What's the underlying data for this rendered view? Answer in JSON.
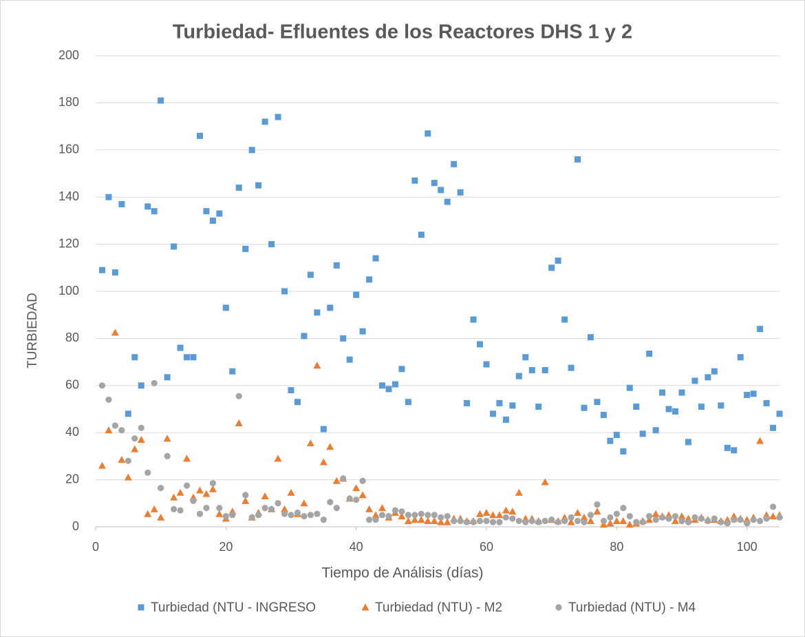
{
  "chart_data": {
    "type": "scatter",
    "title": "Turbiedad- Efluentes de los Reactores DHS 1 y 2",
    "x_label": "Tiempo de Análisis (días)",
    "y_label": "TURBIEDAD",
    "x": [
      1,
      2,
      3,
      4,
      5,
      6,
      7,
      8,
      9,
      10,
      11,
      12,
      13,
      14,
      15,
      16,
      17,
      18,
      19,
      20,
      21,
      22,
      23,
      24,
      25,
      26,
      27,
      28,
      29,
      30,
      31,
      32,
      33,
      34,
      35,
      36,
      37,
      38,
      39,
      40,
      41,
      42,
      43,
      44,
      45,
      46,
      47,
      48,
      49,
      50,
      51,
      52,
      53,
      54,
      55,
      56,
      57,
      58,
      59,
      60,
      61,
      62,
      63,
      64,
      65,
      66,
      67,
      68,
      69,
      70,
      71,
      72,
      73,
      74,
      75,
      76,
      77,
      78,
      79,
      80,
      81,
      82,
      83,
      84,
      85,
      86,
      87,
      88,
      89,
      90,
      91,
      92,
      93,
      94,
      95,
      96,
      97,
      98,
      99,
      100,
      101,
      102,
      103,
      104,
      105
    ],
    "series": [
      {
        "name": "Turbiedad (NTU - INGRESO",
        "color": "#5b9bd5",
        "marker": "square",
        "values": [
          109,
          140,
          108,
          137,
          48,
          72,
          60,
          136,
          134,
          181,
          63.5,
          119,
          76,
          72,
          72,
          166,
          134,
          130,
          133,
          93,
          66,
          144,
          118,
          160,
          145,
          172,
          120,
          174,
          100,
          58,
          53,
          81,
          107,
          91,
          41.5,
          93,
          111,
          80,
          71,
          98.5,
          83,
          105,
          114,
          60,
          58.5,
          60.5,
          67,
          53,
          147,
          124,
          167,
          146,
          143,
          138,
          154,
          142,
          52.5,
          88,
          77.5,
          69,
          48,
          52.5,
          45.5,
          51.5,
          64,
          72,
          66.5,
          51,
          66.5,
          110,
          113,
          88,
          67.5,
          156,
          50.5,
          80.5,
          53,
          47.5,
          36.5,
          39,
          32,
          59,
          51,
          39.5,
          73.5,
          41,
          57,
          50,
          49,
          57,
          36,
          62,
          51,
          63.5,
          66,
          51.5,
          33.5,
          32.5,
          72,
          56,
          56.5,
          84,
          52.5,
          42,
          48
        ]
      },
      {
        "name": "Turbiedad (NTU) - M2",
        "color": "#ed7d31",
        "marker": "triangle",
        "values": [
          26,
          41,
          82.5,
          28.5,
          21,
          33,
          37,
          5.5,
          7.5,
          4,
          37.5,
          12.5,
          14.5,
          29,
          12.5,
          15.5,
          14,
          16,
          5.5,
          3.5,
          6.5,
          44,
          11,
          4,
          6,
          13,
          7.5,
          29,
          7.5,
          14.5,
          5.5,
          10,
          35.5,
          68.5,
          27.5,
          34,
          19.5,
          20.5,
          12,
          16.5,
          13.5,
          7.5,
          5,
          8,
          4,
          6,
          4.5,
          2.5,
          3,
          3,
          2.5,
          2.5,
          2,
          2,
          3.5,
          3.5,
          2.5,
          2.5,
          5.5,
          6,
          5,
          5,
          7,
          6.5,
          14.5,
          3.5,
          3.5,
          2.5,
          19,
          3,
          2.5,
          4,
          2,
          6,
          4,
          2.5,
          6.5,
          1,
          1.5,
          2.5,
          2.5,
          1,
          1.5,
          2.5,
          3,
          5.5,
          4.5,
          5,
          2.5,
          4.5,
          3.5,
          3,
          4,
          3,
          3,
          2.5,
          3,
          4.5,
          3.5,
          3,
          4,
          36.5,
          5,
          4.5,
          5
        ]
      },
      {
        "name": "Turbiedad (NTU) - M4",
        "color": "#a5a5a5",
        "marker": "circle",
        "values": [
          60,
          54,
          43,
          41,
          28,
          37.5,
          42,
          23,
          61,
          16.5,
          30,
          7.5,
          7,
          17.5,
          11,
          5.5,
          8,
          18.5,
          8,
          4.5,
          5,
          55.5,
          13.5,
          4,
          5,
          8,
          7.5,
          10,
          5.5,
          5,
          6,
          4.5,
          5,
          5.5,
          3,
          10.5,
          8,
          20.5,
          12,
          11.5,
          19.5,
          3,
          3,
          5,
          4.5,
          7,
          6.5,
          5,
          5,
          5.5,
          5,
          5,
          4,
          4.5,
          2.5,
          2.5,
          2,
          2,
          2.5,
          2.5,
          2,
          2,
          4,
          3.5,
          2.5,
          2,
          2.5,
          2,
          2.5,
          3,
          2,
          2.5,
          4,
          2.5,
          2,
          5,
          9.5,
          2.5,
          4,
          5.5,
          8,
          4.5,
          2,
          2,
          4.5,
          3,
          4,
          3.5,
          4.5,
          2.5,
          2,
          4,
          3.5,
          2.5,
          3.5,
          2,
          1.5,
          3,
          3,
          1.5,
          3,
          2.5,
          3.5,
          8.5,
          4
        ]
      }
    ],
    "xlim": [
      0,
      105
    ],
    "xticks": [
      0,
      20,
      40,
      60,
      80,
      100
    ],
    "ylim": [
      0,
      200
    ],
    "yticks": [
      0,
      20,
      40,
      60,
      80,
      100,
      120,
      140,
      160,
      180,
      200
    ],
    "grid": true,
    "legend": "bottom"
  }
}
